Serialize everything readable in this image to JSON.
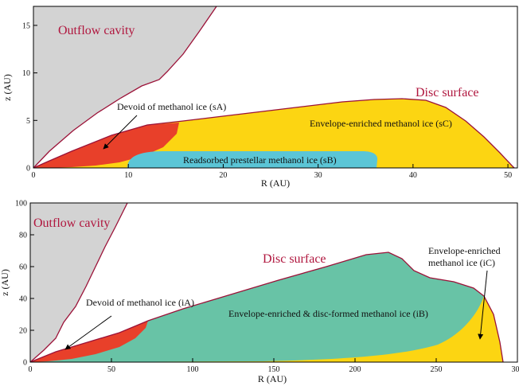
{
  "colors": {
    "outflow_cavity": "#d3d3d3",
    "devoid": "#e8402a",
    "envelope_enriched": "#fcd512",
    "readsorbed": "#5bc5d6",
    "disc_formed": "#68c3a6",
    "surface_line": "#9b1238",
    "label_red": "#b0163e"
  },
  "top_panel": {
    "xlabel": "R (AU)",
    "ylabel": "z (AU)",
    "xlim": [
      0,
      51
    ],
    "ylim": [
      0,
      17
    ],
    "xticks": [
      "0",
      "10",
      "20",
      "30",
      "40",
      "50"
    ],
    "yticks": [
      "0",
      "5",
      "10",
      "15"
    ],
    "labels": {
      "outflow": "Outflow cavity",
      "disc_surface": "Disc surface",
      "devoid": "Devoid of methanol ice (sA)",
      "envelope": "Envelope-enriched methanol ice (sC)",
      "readsorbed": "Readsorbed prestellar methanol ice (sB)"
    }
  },
  "bottom_panel": {
    "xlabel": "R (AU)",
    "ylabel": "z (AU)",
    "xlim": [
      0,
      300
    ],
    "ylim": [
      0,
      100
    ],
    "xticks": [
      "0",
      "50",
      "100",
      "150",
      "200",
      "250",
      "300"
    ],
    "yticks": [
      "0",
      "20",
      "40",
      "60",
      "80",
      "100"
    ],
    "labels": {
      "outflow": "Outflow cavity",
      "disc_surface": "Disc surface",
      "devoid": "Devoid of methanol ice (iA)",
      "envelope_disc": "Envelope-enriched & disc-formed methanol ice (iB)",
      "envelope_line1": "Envelope-enriched",
      "envelope_line2": "methanol ice (iC)"
    }
  }
}
